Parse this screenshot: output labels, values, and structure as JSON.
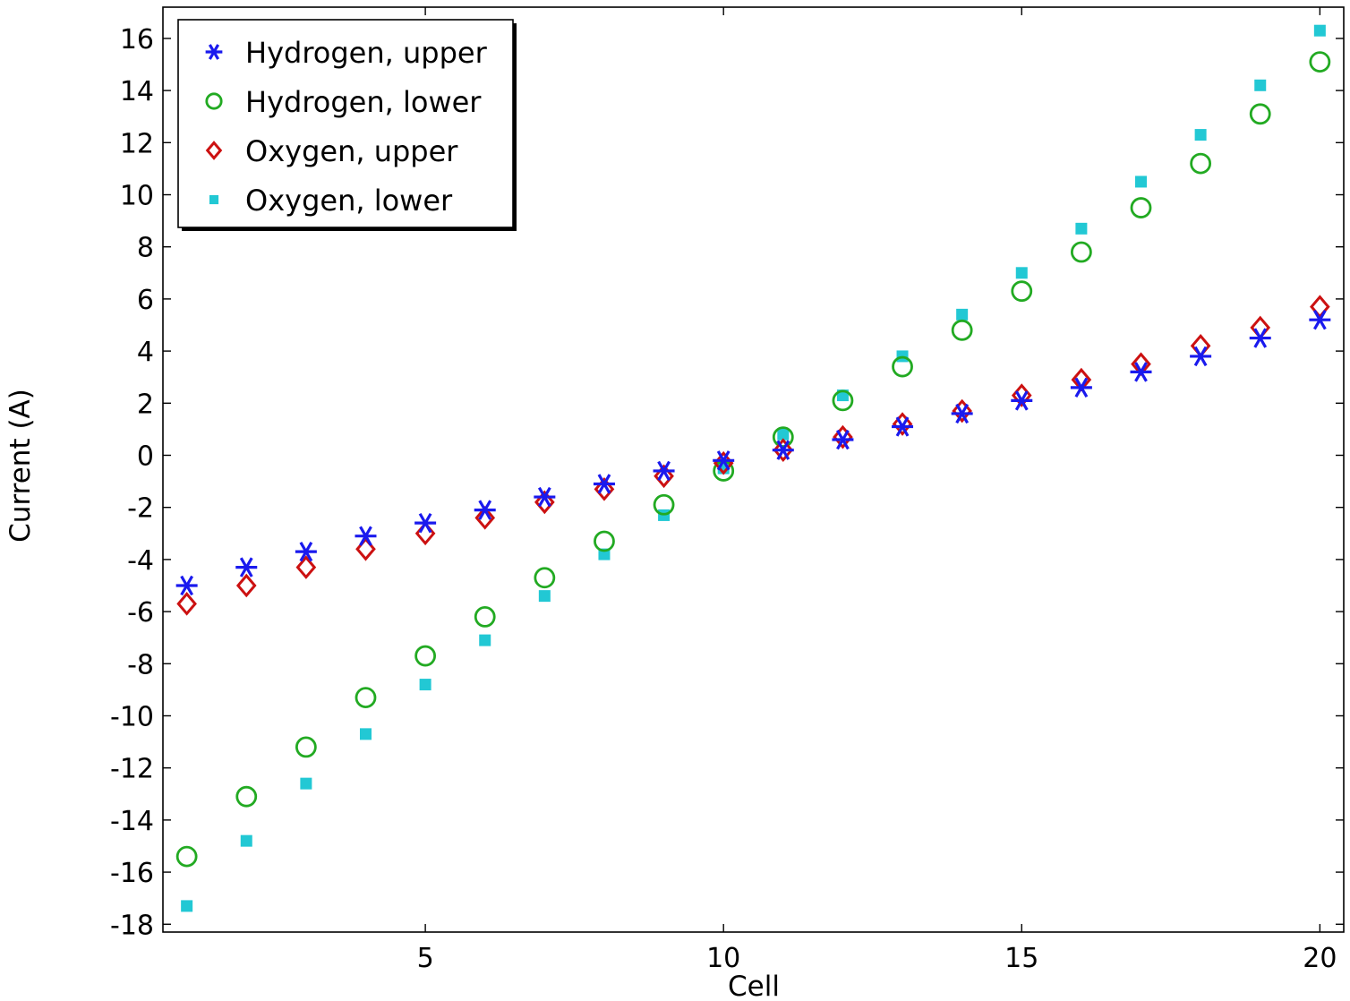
{
  "chart_data": {
    "type": "scatter",
    "title": "",
    "xlabel": "Cell",
    "ylabel": "Current (A)",
    "xlim": [
      0.6,
      20.4
    ],
    "ylim": [
      -18.3,
      17.2
    ],
    "xticks": [
      5,
      10,
      15,
      20
    ],
    "xtick_labels": [
      "5",
      "10",
      "15",
      "20"
    ],
    "yticks": [
      16,
      14,
      12,
      10,
      8,
      6,
      4,
      2,
      0,
      -2,
      -4,
      -6,
      -8,
      -10,
      -12,
      -14,
      -16,
      -18
    ],
    "ytick_labels": [
      "16",
      "14",
      "12",
      "10",
      "8",
      "6",
      "4",
      "2",
      "0",
      "-2",
      "-4",
      "-6",
      "-8",
      "-10",
      "-12",
      "-14",
      "-16",
      "-18"
    ],
    "grid": false,
    "legend_position": "top-left",
    "x": [
      1,
      2,
      3,
      4,
      5,
      6,
      7,
      8,
      9,
      10,
      11,
      12,
      13,
      14,
      15,
      16,
      17,
      18,
      19,
      20
    ],
    "series": [
      {
        "name": "Hydrogen, upper",
        "marker": "asterisk",
        "color": "#1a1aee",
        "values": [
          -5.0,
          -4.3,
          -3.7,
          -3.1,
          -2.6,
          -2.1,
          -1.6,
          -1.1,
          -0.6,
          -0.2,
          0.2,
          0.6,
          1.1,
          1.6,
          2.1,
          2.6,
          3.2,
          3.8,
          4.5,
          5.2
        ]
      },
      {
        "name": "Hydrogen, lower",
        "marker": "circle",
        "color": "#22aa22",
        "values": [
          -15.4,
          -13.1,
          -11.2,
          -9.3,
          -7.7,
          -6.2,
          -4.7,
          -3.3,
          -1.9,
          -0.6,
          0.7,
          2.1,
          3.4,
          4.8,
          6.3,
          7.8,
          9.5,
          11.2,
          13.1,
          15.1
        ]
      },
      {
        "name": "Oxygen, upper",
        "marker": "diamond",
        "color": "#cc1111",
        "values": [
          -5.7,
          -5.0,
          -4.3,
          -3.6,
          -3.0,
          -2.4,
          -1.8,
          -1.3,
          -0.8,
          -0.3,
          0.2,
          0.7,
          1.2,
          1.7,
          2.3,
          2.9,
          3.5,
          4.2,
          4.9,
          5.7
        ]
      },
      {
        "name": "Oxygen, lower",
        "marker": "square",
        "color": "#22c8d4",
        "values": [
          -17.3,
          -14.8,
          -12.6,
          -10.7,
          -8.8,
          -7.1,
          -5.4,
          -3.8,
          -2.3,
          -0.5,
          0.8,
          2.3,
          3.8,
          5.4,
          7.0,
          8.7,
          10.5,
          12.3,
          14.2,
          16.3
        ]
      }
    ]
  }
}
